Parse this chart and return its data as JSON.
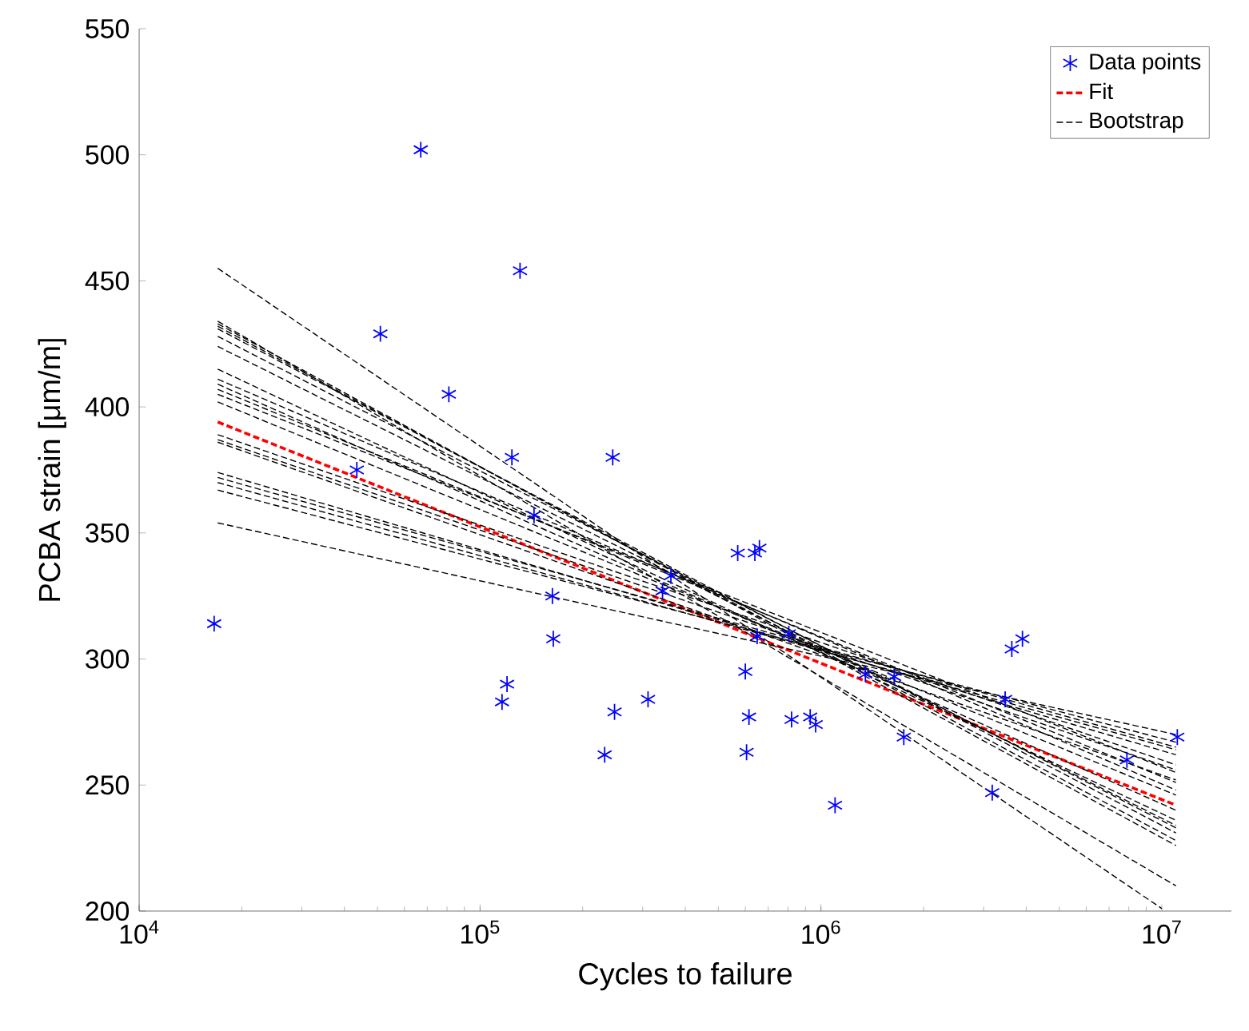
{
  "chart_data": {
    "type": "scatter",
    "xlabel": "Cycles to failure",
    "ylabel": "PCBA strain [μm/m]",
    "log": "x",
    "legend": "top right",
    "grid": false,
    "xlim": [
      10000,
      16000000
    ],
    "ylim": [
      200,
      550
    ],
    "xticks": [
      {
        "value": 10000,
        "label": "10$^{4}$"
      },
      {
        "value": 100000,
        "label": "10$^{5}$"
      },
      {
        "value": 1000000,
        "label": "10$^{6}$"
      },
      {
        "value": 10000000,
        "label": "10$^{7}$"
      }
    ],
    "yticks": [
      200,
      250,
      300,
      350,
      400,
      450,
      500,
      550
    ],
    "series": [
      {
        "name": "Data points",
        "color": "#0000ff",
        "marker": "cross",
        "x": [
          16600,
          43500,
          51000,
          67000,
          81000,
          116000,
          120000,
          124000,
          131000,
          144000,
          163000,
          164000,
          232000,
          245000,
          248000,
          311000,
          343000,
          363000,
          570000,
          640000,
          660000,
          600000,
          615000,
          605000,
          650000,
          805000,
          820000,
          930000,
          965000,
          1100000,
          1350000,
          1640000,
          1750000,
          3180000,
          3470000,
          3630000,
          3900000,
          7900000,
          11100000
        ],
        "values": [
          314,
          375,
          429,
          502,
          405,
          283,
          290,
          380,
          454,
          357,
          325,
          308,
          262,
          380,
          279,
          284,
          327,
          333,
          342,
          342,
          344,
          295,
          277,
          263,
          309,
          310,
          276,
          277,
          274,
          242,
          294,
          293,
          269,
          247,
          284,
          304,
          308,
          260,
          269
        ]
      },
      {
        "name": "Fit",
        "type": "line",
        "color": "#ff0000",
        "line_style": "dashed",
        "marker": "none",
        "x": [
          17000,
          11000000
        ],
        "values": [
          394,
          242
        ]
      },
      {
        "name": "Bootstrap",
        "type": "line",
        "color": "#000000",
        "line_style": "dashed",
        "marker": "none",
        "x": [
          17000,
          10000000
        ],
        "values": [
          455,
          201
        ]
      },
      {
        "type": "line",
        "color": "#000000",
        "line_style": "dashed",
        "marker": "none",
        "x": [
          17000,
          11000000
        ],
        "values": [
          434,
          210
        ]
      },
      {
        "type": "line",
        "color": "#000000",
        "line_style": "dashed",
        "marker": "none",
        "x": [
          17000,
          11000000
        ],
        "values": [
          433,
          226
        ]
      },
      {
        "type": "line",
        "color": "#000000",
        "line_style": "dashed",
        "marker": "none",
        "x": [
          17000,
          11000000
        ],
        "values": [
          432,
          228
        ]
      },
      {
        "type": "line",
        "color": "#000000",
        "line_style": "dashed",
        "marker": "none",
        "x": [
          17000,
          11000000
        ],
        "values": [
          431,
          231
        ]
      },
      {
        "type": "line",
        "color": "#000000",
        "line_style": "dashed",
        "marker": "none",
        "x": [
          17000,
          11000000
        ],
        "values": [
          428,
          233
        ]
      },
      {
        "type": "line",
        "color": "#000000",
        "line_style": "dashed",
        "marker": "none",
        "x": [
          17000,
          11000000
        ],
        "values": [
          424,
          234
        ]
      },
      {
        "type": "line",
        "color": "#000000",
        "line_style": "dashed",
        "marker": "none",
        "x": [
          17000,
          11000000
        ],
        "values": [
          415,
          236
        ]
      },
      {
        "type": "line",
        "color": "#000000",
        "line_style": "dashed",
        "marker": "none",
        "x": [
          17000,
          11000000
        ],
        "values": [
          411,
          248
        ]
      },
      {
        "type": "line",
        "color": "#000000",
        "line_style": "dashed",
        "marker": "none",
        "x": [
          17000,
          11000000
        ],
        "values": [
          409,
          240
        ]
      },
      {
        "type": "line",
        "color": "#000000",
        "line_style": "dashed",
        "marker": "none",
        "x": [
          17000,
          11000000
        ],
        "values": [
          407,
          251
        ]
      },
      {
        "type": "line",
        "color": "#000000",
        "line_style": "dashed",
        "marker": "none",
        "x": [
          17000,
          11000000
        ],
        "values": [
          405,
          255
        ]
      },
      {
        "type": "line",
        "color": "#000000",
        "line_style": "dashed",
        "marker": "none",
        "x": [
          17000,
          11000000
        ],
        "values": [
          402,
          246
        ]
      },
      {
        "type": "line",
        "color": "#000000",
        "line_style": "dashed",
        "marker": "none",
        "x": [
          17000,
          11000000
        ],
        "values": [
          389,
          258
        ]
      },
      {
        "type": "line",
        "color": "#000000",
        "line_style": "dashed",
        "marker": "none",
        "x": [
          17000,
          11000000
        ],
        "values": [
          387,
          256
        ]
      },
      {
        "type": "line",
        "color": "#000000",
        "line_style": "dashed",
        "marker": "none",
        "x": [
          17000,
          11000000
        ],
        "values": [
          386,
          252
        ]
      },
      {
        "type": "line",
        "color": "#000000",
        "line_style": "dashed",
        "marker": "none",
        "x": [
          17000,
          11000000
        ],
        "values": [
          374,
          262
        ]
      },
      {
        "type": "line",
        "color": "#000000",
        "line_style": "dashed",
        "marker": "none",
        "x": [
          17000,
          11000000
        ],
        "values": [
          372,
          265
        ]
      },
      {
        "type": "line",
        "color": "#000000",
        "line_style": "dashed",
        "marker": "none",
        "x": [
          17000,
          11000000
        ],
        "values": [
          370,
          264
        ]
      },
      {
        "type": "line",
        "color": "#000000",
        "line_style": "dashed",
        "marker": "none",
        "x": [
          17000,
          11000000
        ],
        "values": [
          367,
          267
        ]
      },
      {
        "type": "line",
        "color": "#000000",
        "line_style": "dashed",
        "marker": "none",
        "x": [
          17000,
          11000000
        ],
        "values": [
          354,
          270
        ]
      }
    ]
  }
}
